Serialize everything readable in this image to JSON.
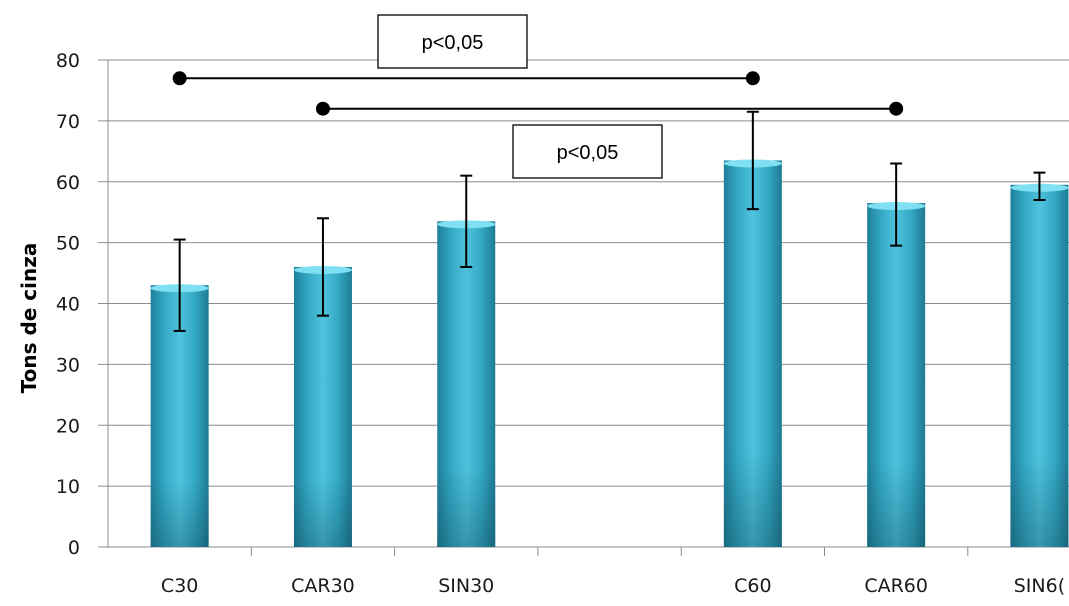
{
  "chart_data": {
    "type": "bar",
    "ylabel": "Tons de cinza",
    "xlabel": "",
    "title": "",
    "ylim": [
      0,
      80
    ],
    "yticks": [
      0,
      10,
      20,
      30,
      40,
      50,
      60,
      70,
      80
    ],
    "grid": true,
    "legend": "none",
    "categories": [
      "C30",
      "CAR30",
      "SIN30",
      "",
      "C60",
      "CAR60",
      "SIN6("
    ],
    "values": [
      43,
      46,
      53.5,
      null,
      63.5,
      56.5,
      59.5
    ],
    "error_low": [
      35.5,
      38,
      46,
      null,
      55.5,
      49.5,
      57
    ],
    "error_high": [
      50.5,
      54,
      61,
      null,
      71.5,
      63,
      61.5
    ],
    "bar_color": "#3fb4cf",
    "annotations": [
      {
        "label": "p<0,05",
        "from_category": 0,
        "to_category": 4,
        "y": 77
      },
      {
        "label": "p<0,05",
        "from_category": 1,
        "to_category": 5,
        "y": 72
      }
    ]
  }
}
